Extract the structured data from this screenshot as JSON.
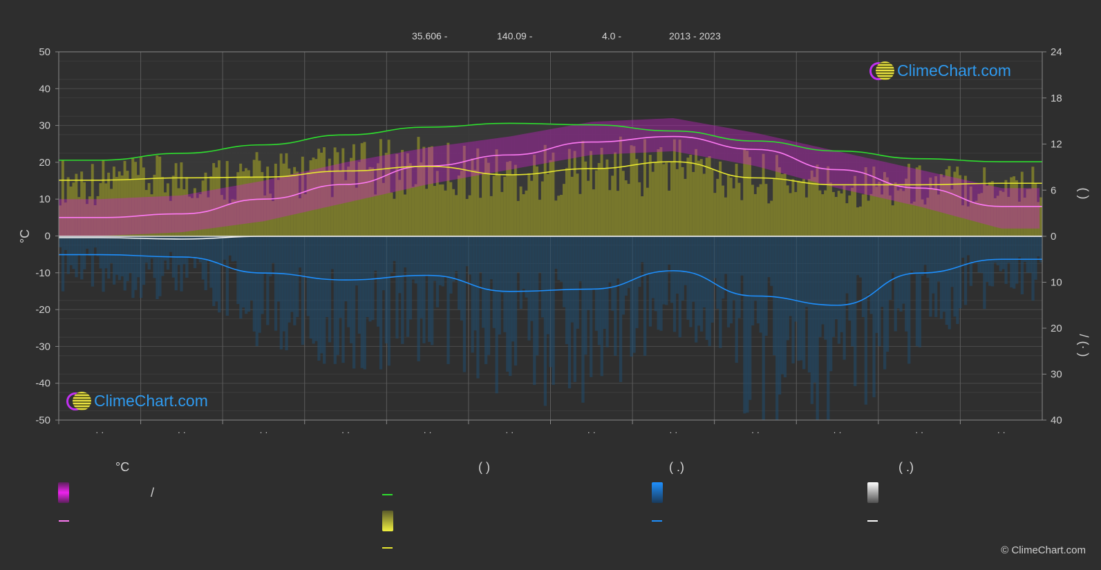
{
  "header": {
    "latitude": "35.606 -",
    "longitude": "140.09 -",
    "elevation": "4.0 -",
    "years": "2013 - 2023"
  },
  "colors": {
    "background": "#2e2e2e",
    "temp_range": "#d020d0",
    "daylight": "#2ee02e",
    "sunshine": "#e8e830",
    "sunshine_fill": "#8c8c28",
    "precip": "#1e90ff",
    "snow": "#ffffff",
    "mean_temp": "#ff7af5"
  },
  "chart_data": {
    "type": "line",
    "x": [
      1,
      2,
      3,
      4,
      5,
      6,
      7,
      8,
      9,
      10,
      11,
      12
    ],
    "x_tick_labels": [
      "· ·",
      "· ·",
      "· ·",
      "· ·",
      "· ·",
      "· ·",
      "· ·",
      "· ·",
      "· ·",
      "· ·",
      "· ·",
      "· ·"
    ],
    "y_left": {
      "label": "°C",
      "range": [
        -50,
        50
      ],
      "ticks": [
        50,
        40,
        30,
        20,
        10,
        0,
        -10,
        -20,
        -30,
        -40,
        -50
      ]
    },
    "y_right_top": {
      "label": "( )",
      "range": [
        0,
        24
      ],
      "ticks": [
        24,
        18,
        12,
        6,
        0
      ]
    },
    "y_right_bottom": {
      "label": "/ (· )",
      "range": [
        0,
        40
      ],
      "ticks": [
        0,
        10,
        20,
        30,
        40
      ]
    },
    "grid": true,
    "series": [
      {
        "key": "mean_temp",
        "axis": "left",
        "values": [
          5.0,
          6.0,
          10.0,
          14.0,
          19.0,
          22.0,
          25.5,
          27.0,
          23.5,
          18.0,
          13.0,
          8.0
        ]
      },
      {
        "key": "daylight_hours",
        "axis": "right_top",
        "values": [
          9.9,
          10.8,
          11.9,
          13.2,
          14.2,
          14.7,
          14.5,
          13.7,
          12.4,
          11.1,
          10.1,
          9.7
        ]
      },
      {
        "key": "sunshine_hours",
        "axis": "right_top",
        "values": [
          7.3,
          7.6,
          7.7,
          8.5,
          9.1,
          8.0,
          8.8,
          9.7,
          7.6,
          6.7,
          6.7,
          6.9
        ]
      },
      {
        "key": "precip_mm",
        "axis": "right_bottom",
        "values": [
          4.0,
          4.5,
          8.0,
          9.5,
          8.5,
          12.0,
          11.5,
          7.5,
          13.0,
          15.0,
          8.0,
          5.0
        ]
      },
      {
        "key": "snow_mm",
        "axis": "right_bottom",
        "values": [
          0.3,
          0.6,
          0.0,
          0.0,
          0.0,
          0.0,
          0.0,
          0.0,
          0.0,
          0.0,
          0.0,
          0.0
        ]
      }
    ],
    "temp_band": {
      "axis": "left",
      "min": [
        0,
        1,
        4,
        9,
        14,
        18,
        22,
        23,
        19,
        13,
        8,
        2
      ],
      "max": [
        10,
        11,
        15,
        20,
        24,
        27,
        31,
        32,
        28,
        23,
        18,
        13
      ]
    }
  },
  "legend": {
    "col1_head": "°C",
    "col1_row1": "/",
    "col2_head": "( )",
    "col3_head": "( .)",
    "col4_head": "( .)"
  },
  "logo_text": "ClimeChart.com",
  "copyright": "© ClimeChart.com"
}
